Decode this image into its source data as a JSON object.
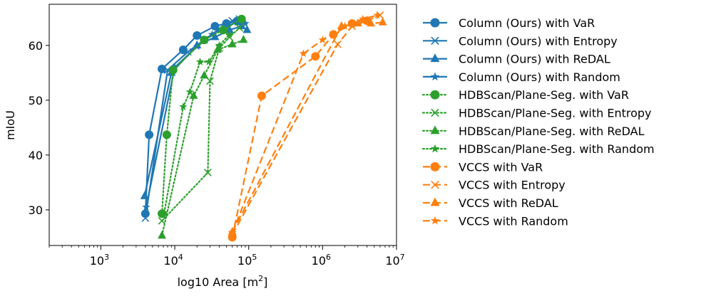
{
  "chart_data": {
    "type": "line",
    "xscale": "log",
    "xlabel": "log10 Area [m",
    "xlabel_sup": "2",
    "xlabel_tail": "]",
    "ylabel": "mIoU",
    "xlim": [
      200,
      10000000
    ],
    "ylim": [
      23.5,
      67.5
    ],
    "xticks": [
      {
        "value": 1000,
        "base": "10",
        "exp": "3"
      },
      {
        "value": 10000,
        "base": "10",
        "exp": "4"
      },
      {
        "value": 100000,
        "base": "10",
        "exp": "5"
      },
      {
        "value": 1000000,
        "base": "10",
        "exp": "6"
      },
      {
        "value": 10000000,
        "base": "10",
        "exp": "7"
      }
    ],
    "yticks": [
      30,
      40,
      50,
      60
    ],
    "legend_position": "outside-right",
    "colors": {
      "column": "#1f77b4",
      "hdbscan": "#2ca02c",
      "vccs": "#ff7f0e"
    },
    "series": [
      {
        "name": "Column (Ours) with VaR",
        "group": "column",
        "marker": "circle",
        "dash": "solid",
        "x": [
          4000,
          4500,
          6700,
          13000,
          20000,
          35000,
          50000,
          70000
        ],
        "y": [
          29.3,
          43.7,
          55.7,
          59.2,
          61.8,
          63.5,
          64.0,
          64.4
        ]
      },
      {
        "name": "Column (Ours) with Entropy",
        "group": "column",
        "marker": "x",
        "dash": "solid",
        "x": [
          4000,
          8000,
          15000,
          25000,
          40000,
          60000,
          75000
        ],
        "y": [
          28.5,
          55.5,
          58.8,
          61.0,
          63.0,
          64.5,
          64.8
        ]
      },
      {
        "name": "Column (Ours) with ReDAL",
        "group": "column",
        "marker": "triangle",
        "dash": "solid",
        "x": [
          3900,
          9000,
          20000,
          35000,
          55000,
          80000,
          95000
        ],
        "y": [
          32.5,
          55.0,
          60.0,
          61.5,
          62.8,
          63.5,
          62.8
        ]
      },
      {
        "name": "Column (Ours) with Random",
        "group": "column",
        "marker": "star",
        "dash": "solid",
        "x": [
          4100,
          10000,
          20000,
          32000,
          50000,
          70000,
          90000
        ],
        "y": [
          30.5,
          56.0,
          59.8,
          62.0,
          63.5,
          64.2,
          64.0
        ]
      },
      {
        "name": "HDBScan/Plane-Seg. with VaR",
        "group": "hdbscan",
        "marker": "circle",
        "dash": "dotted",
        "x": [
          6700,
          7800,
          9500,
          25000,
          45000,
          80000
        ],
        "y": [
          29.3,
          43.7,
          55.5,
          61.0,
          62.8,
          64.8
        ]
      },
      {
        "name": "HDBScan/Plane-Seg. with Entropy",
        "group": "hdbscan",
        "marker": "x",
        "dash": "dotted",
        "x": [
          6700,
          28000,
          30000,
          40000,
          55000,
          75000
        ],
        "y": [
          28.0,
          36.8,
          53.5,
          59.5,
          61.5,
          63.2
        ]
      },
      {
        "name": "HDBScan/Plane-Seg. with ReDAL",
        "group": "hdbscan",
        "marker": "triangle",
        "dash": "dotted",
        "x": [
          6700,
          18000,
          25000,
          38000,
          60000,
          85000
        ],
        "y": [
          25.3,
          50.8,
          54.5,
          59.2,
          60.2,
          61.0
        ]
      },
      {
        "name": "HDBScan/Plane-Seg. with Random",
        "group": "hdbscan",
        "marker": "star",
        "dash": "dotted",
        "x": [
          7200,
          13000,
          16000,
          22000,
          29000,
          40000,
          55000
        ],
        "y": [
          29.5,
          48.8,
          51.5,
          57.0,
          57.0,
          60.0,
          62.0
        ]
      },
      {
        "name": "VCCS with VaR",
        "group": "vccs",
        "marker": "circle",
        "dash": "dashed",
        "x": [
          60000,
          150000,
          800000,
          1400000,
          2500000,
          4000000
        ],
        "y": [
          25.0,
          50.8,
          58.0,
          62.0,
          64.0,
          64.5
        ]
      },
      {
        "name": "VCCS with Entropy",
        "group": "vccs",
        "marker": "x",
        "dash": "dashed",
        "x": [
          60000,
          1600000,
          2500000,
          4000000,
          6000000
        ],
        "y": [
          25.5,
          60.2,
          63.5,
          64.5,
          65.5
        ]
      },
      {
        "name": "VCCS with ReDAL",
        "group": "vccs",
        "marker": "triangle",
        "dash": "dashed",
        "x": [
          60000,
          1800000,
          3000000,
          4500000,
          6500000
        ],
        "y": [
          26.0,
          63.5,
          64.0,
          64.0,
          64.2
        ]
      },
      {
        "name": "VCCS with Random",
        "group": "vccs",
        "marker": "star",
        "dash": "dashed",
        "x": [
          60000,
          550000,
          1000000,
          2000000,
          3500000,
          5500000
        ],
        "y": [
          25.8,
          58.5,
          61.0,
          63.5,
          64.8,
          65.5
        ]
      }
    ]
  }
}
